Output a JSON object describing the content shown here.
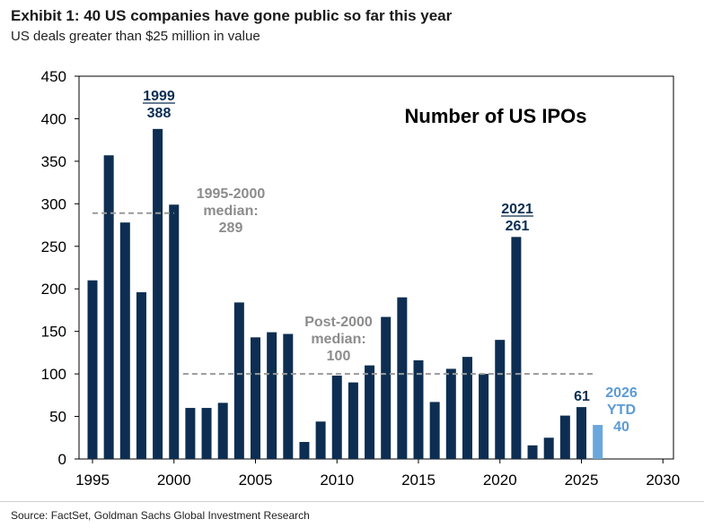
{
  "header": {
    "title": "Exhibit 1: 40 US companies have gone public so far this year",
    "subtitle": "US deals greater than $25 million in value"
  },
  "footer": {
    "source": "Source: FactSet, Goldman Sachs Global Investment Research"
  },
  "colors": {
    "bar": "#0d2e52",
    "ytd_bar": "#6aa7dc",
    "median_line": "#9a9a9a",
    "median_text": "#8c8c8c",
    "ytd_text": "#5b9bd5"
  },
  "chart_data": {
    "type": "bar",
    "title": "Number of US IPOs",
    "xlim": [
      1995,
      2030
    ],
    "ylim": [
      0,
      450
    ],
    "x_ticks": [
      1995,
      2000,
      2005,
      2010,
      2015,
      2020,
      2025,
      2030
    ],
    "y_ticks": [
      0,
      50,
      100,
      150,
      200,
      250,
      300,
      350,
      400,
      450
    ],
    "grid": false,
    "x": [
      1995,
      1996,
      1997,
      1998,
      1999,
      2000,
      2001,
      2002,
      2003,
      2004,
      2005,
      2006,
      2007,
      2008,
      2009,
      2010,
      2011,
      2012,
      2013,
      2014,
      2015,
      2016,
      2017,
      2018,
      2019,
      2020,
      2021,
      2022,
      2023,
      2024,
      2025,
      2026
    ],
    "values": [
      210,
      357,
      278,
      196,
      388,
      299,
      60,
      60,
      66,
      184,
      143,
      149,
      147,
      20,
      44,
      98,
      90,
      110,
      167,
      190,
      116,
      67,
      106,
      120,
      100,
      140,
      261,
      16,
      25,
      51,
      61,
      40
    ],
    "highlight": {
      "x": 2026,
      "label": "YTD"
    },
    "annotations": [
      {
        "id": "peak-1999",
        "lines": [
          "1999",
          "388"
        ],
        "x": 1999,
        "y": 388
      },
      {
        "id": "peak-2021",
        "lines": [
          "2021",
          "261"
        ],
        "x": 2021,
        "y": 261
      },
      {
        "id": "value-2025",
        "lines": [
          "61"
        ],
        "x": 2025,
        "y": 61
      },
      {
        "id": "ytd-2026",
        "lines": [
          "2026",
          "YTD",
          "40"
        ],
        "x": 2026,
        "y": 40
      }
    ],
    "medians": [
      {
        "id": "median-1995-2000",
        "label_lines": [
          "1995-2000",
          "median:",
          "289"
        ],
        "value": 289,
        "x_start": 1995,
        "x_end": 2000
      },
      {
        "id": "median-post-2000",
        "label_lines": [
          "Post-2000",
          "median:",
          "100"
        ],
        "value": 100,
        "x_start": 2001,
        "x_end": 2026
      }
    ]
  }
}
